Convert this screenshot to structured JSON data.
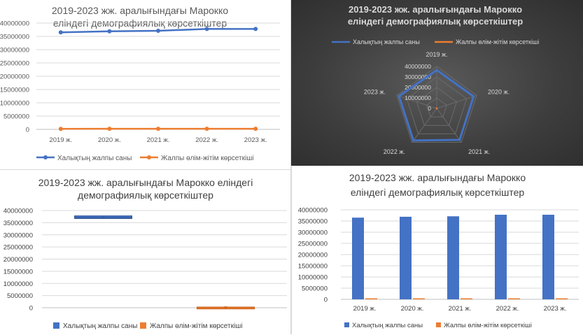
{
  "colors": {
    "series1": "#4472C4",
    "series2": "#ED7D31",
    "grid": "#D9D9D9",
    "text": "#595959",
    "dark_text": "#D9D9D9"
  },
  "legend": {
    "series1": "Халықтың жалпы саны",
    "series2": "Жалпы өлім-жітім көрсеткіші"
  },
  "chart_data": [
    {
      "type": "line",
      "title_lines": [
        "2019-2023 жж. аралығындағы Марокко",
        "еліндегі демографиялық көрсеткіштер"
      ],
      "categories": [
        "2019 ж.",
        "2020 ж.",
        "2021 ж.",
        "2022 ж.",
        "2023 ж."
      ],
      "series": [
        {
          "name": "Халықтың жалпы саны",
          "values": [
            36500000,
            36900000,
            37100000,
            37800000,
            37800000
          ]
        },
        {
          "name": "Жалпы өлім-жітім көрсеткіші",
          "values": [
            200000,
            240000,
            230000,
            240000,
            240000
          ]
        }
      ],
      "y_ticks": [
        "0",
        "5000000",
        "10000000",
        "15000000",
        "20000000",
        "25000000",
        "30000000",
        "35000000",
        "40000000"
      ],
      "ylim": [
        0,
        40000000
      ],
      "legend_position": "bottom",
      "markers": true
    },
    {
      "type": "radar",
      "title_lines": [
        "2019-2023 жж. аралығындағы Марокко",
        "еліндегі демографиялық көрсеткіштер"
      ],
      "categories": [
        "2019 ж.",
        "2020 ж.",
        "2021 ж.",
        "2022 ж.",
        "2023 ж."
      ],
      "series": [
        {
          "name": "Халықтың жалпы саны",
          "values": [
            36500000,
            36900000,
            37100000,
            37800000,
            37800000
          ]
        },
        {
          "name": "Жалпы өлім-жітім көрсеткіші",
          "values": [
            200000,
            240000,
            230000,
            240000,
            240000
          ]
        }
      ],
      "r_ticks": [
        "0",
        "10000000",
        "20000000",
        "30000000",
        "40000000"
      ],
      "rlim": [
        0,
        40000000
      ],
      "legend_position": "top",
      "theme": "dark"
    },
    {
      "type": "box",
      "title_lines": [
        "2019-2023 жж. аралығындағы Марокко  еліндегі",
        "демографиялық көрсеткіштер"
      ],
      "series": [
        {
          "name": "Халықтың жалпы саны",
          "values": [
            36500000,
            36900000,
            37100000,
            37800000,
            37800000
          ],
          "box": [
            36700000,
            37800000
          ],
          "median": 37100000,
          "mean": 37220000
        },
        {
          "name": "Жалпы өлім-жітім көрсеткіші",
          "values": [
            200000,
            240000,
            230000,
            240000,
            240000
          ],
          "box": [
            215000,
            240000
          ],
          "median": 240000,
          "mean": 230000
        }
      ],
      "y_ticks": [
        "0",
        "5000000",
        "10000000",
        "15000000",
        "20000000",
        "25000000",
        "30000000",
        "35000000",
        "40000000"
      ],
      "ylim": [
        0,
        40000000
      ],
      "legend_position": "bottom"
    },
    {
      "type": "bar",
      "title_lines": [
        "2019-2023 жж. аралығындағы Марокко",
        "еліндегі демографиялық көрсеткіштер"
      ],
      "categories": [
        "2019 ж.",
        "2020 ж.",
        "2021 ж.",
        "2022 ж.",
        "2023 ж."
      ],
      "series": [
        {
          "name": "Халықтың жалпы саны",
          "values": [
            36500000,
            36900000,
            37100000,
            37800000,
            37800000
          ]
        },
        {
          "name": "Жалпы өлім-жітім көрсеткіші",
          "values": [
            200000,
            240000,
            230000,
            240000,
            240000
          ]
        }
      ],
      "y_ticks": [
        "0",
        "5000000",
        "10000000",
        "15000000",
        "20000000",
        "25000000",
        "30000000",
        "35000000",
        "40000000"
      ],
      "ylim": [
        0,
        40000000
      ],
      "legend_position": "bottom"
    }
  ]
}
